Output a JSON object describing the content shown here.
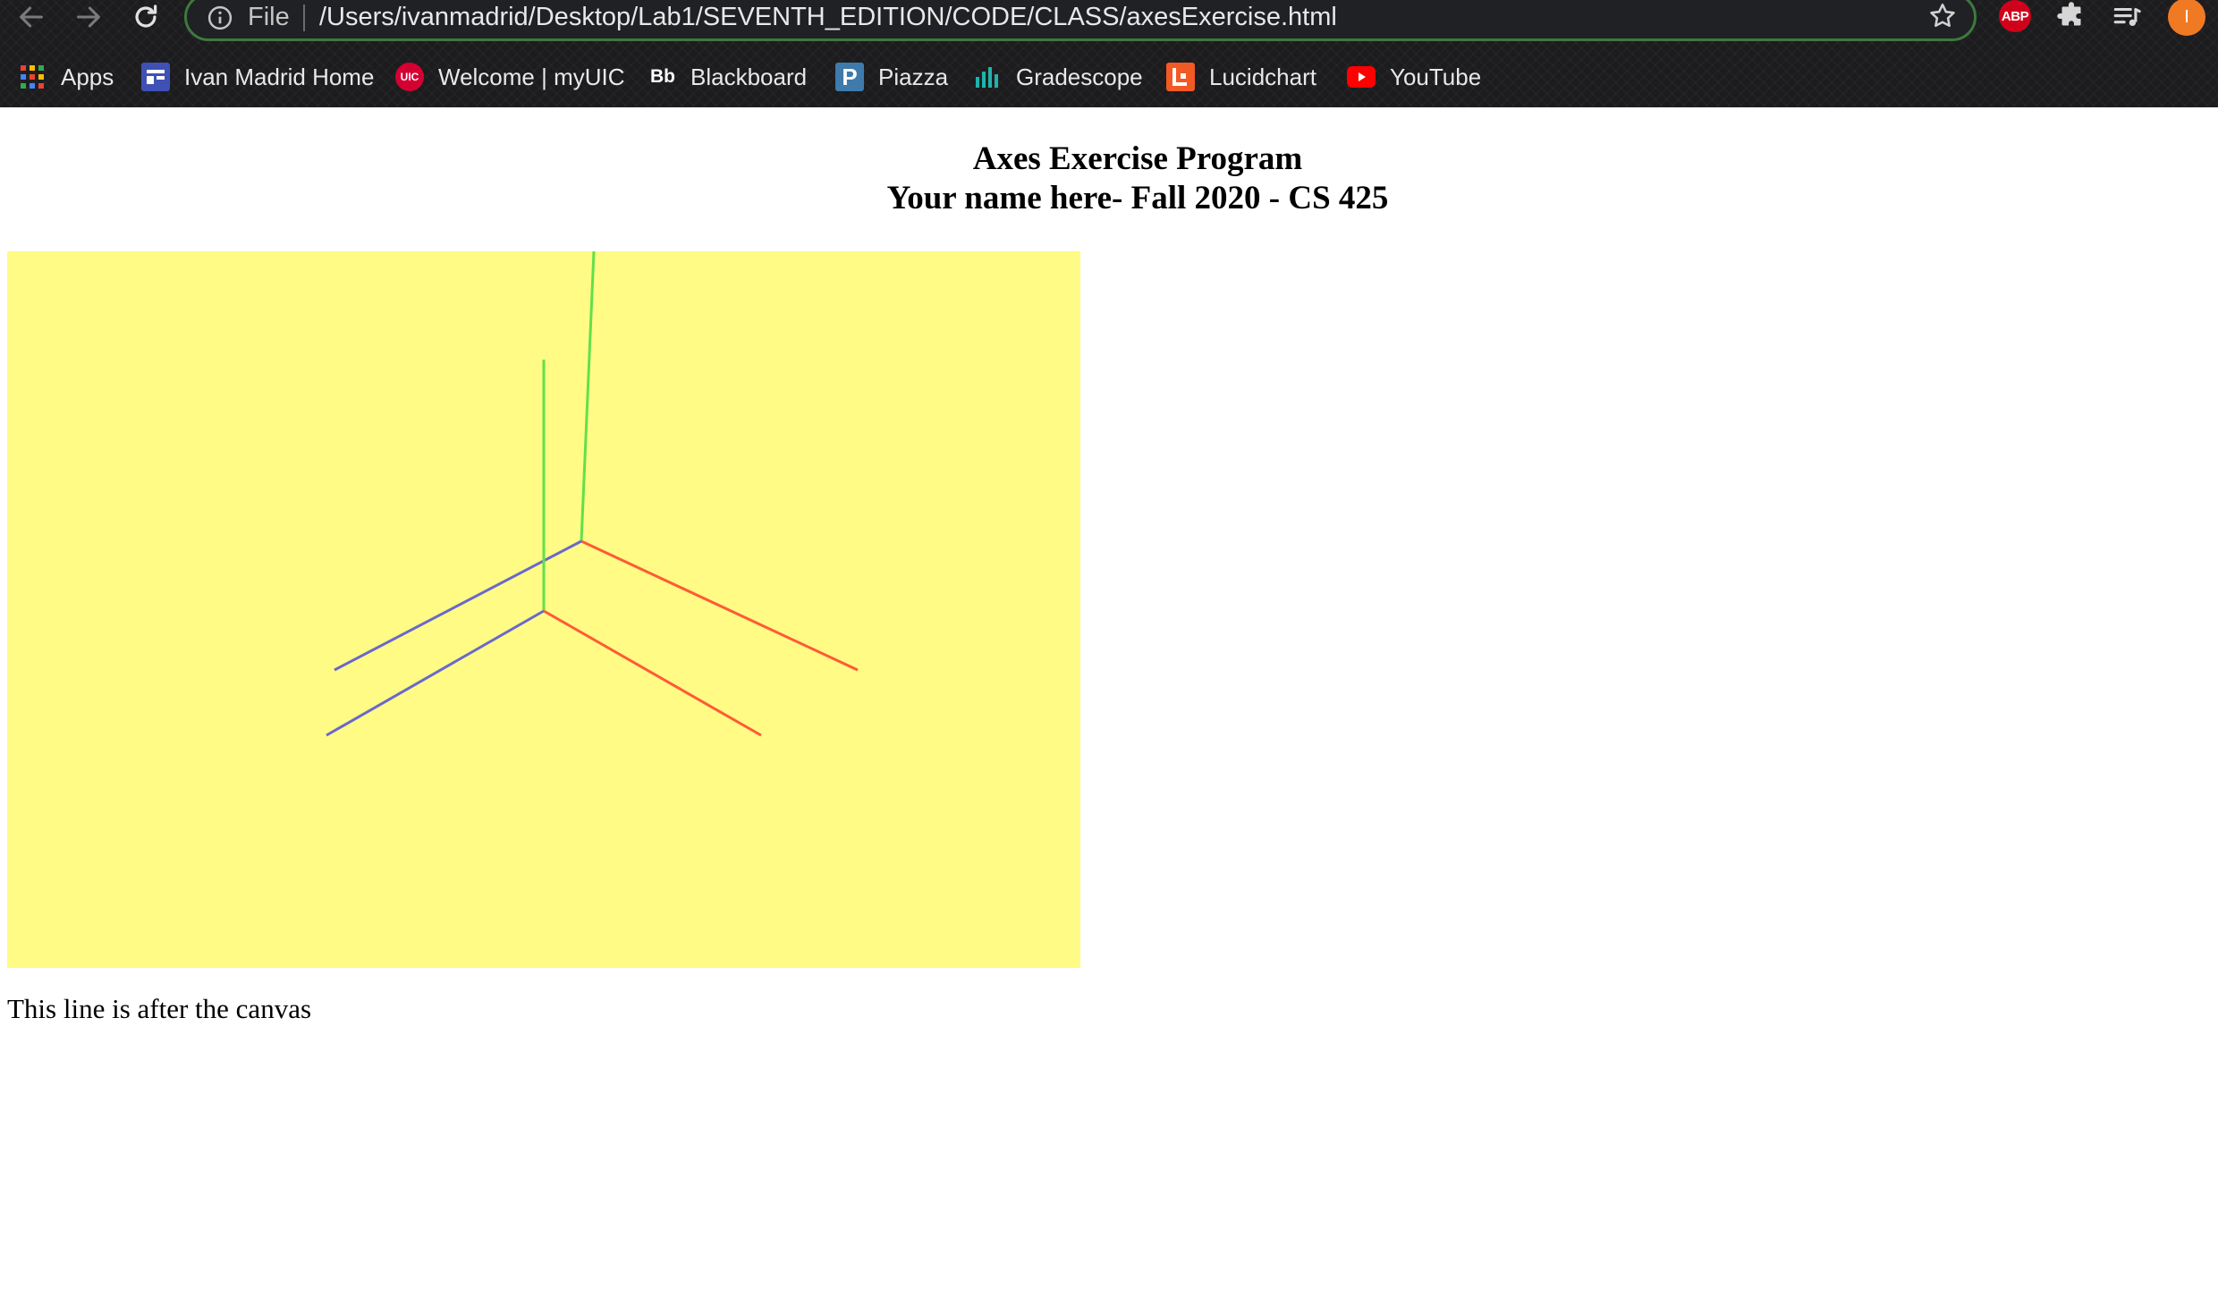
{
  "browser": {
    "address_scheme": "File",
    "url": "/Users/ivanmadrid/Desktop/Lab1/SEVENTH_EDITION/CODE/CLASS/axesExercise.html",
    "abp_badge": "ABP",
    "profile_initial": "I",
    "colors": {
      "toolbar": "#1c1c1e",
      "omnibox_border": "#3d7a3d",
      "abp": "#d0021b",
      "profile": "#f07a24"
    }
  },
  "bookmarks": [
    {
      "label": "Apps",
      "icon": "apps-grid-icon"
    },
    {
      "label": "Ivan Madrid Home",
      "icon": "site-icon"
    },
    {
      "label": "Welcome | myUIC",
      "icon": "uic-icon",
      "icon_text": "UIC"
    },
    {
      "label": "Blackboard",
      "icon": "blackboard-icon",
      "icon_text": "Bb"
    },
    {
      "label": "Piazza",
      "icon": "piazza-icon",
      "icon_text": "P"
    },
    {
      "label": "Gradescope",
      "icon": "gradescope-icon"
    },
    {
      "label": "Lucidchart",
      "icon": "lucidchart-icon"
    },
    {
      "label": "YouTube",
      "icon": "youtube-icon"
    }
  ],
  "page": {
    "title_line1": "Axes Exercise Program",
    "title_line2": "Your name here- Fall 2020 - CS 425",
    "after_canvas": "This line is after the canvas",
    "canvas_background": "#fffb85",
    "axis_colors": {
      "x": "#ff5a36",
      "y": "#62e04a",
      "z": "#6a68cc"
    }
  }
}
